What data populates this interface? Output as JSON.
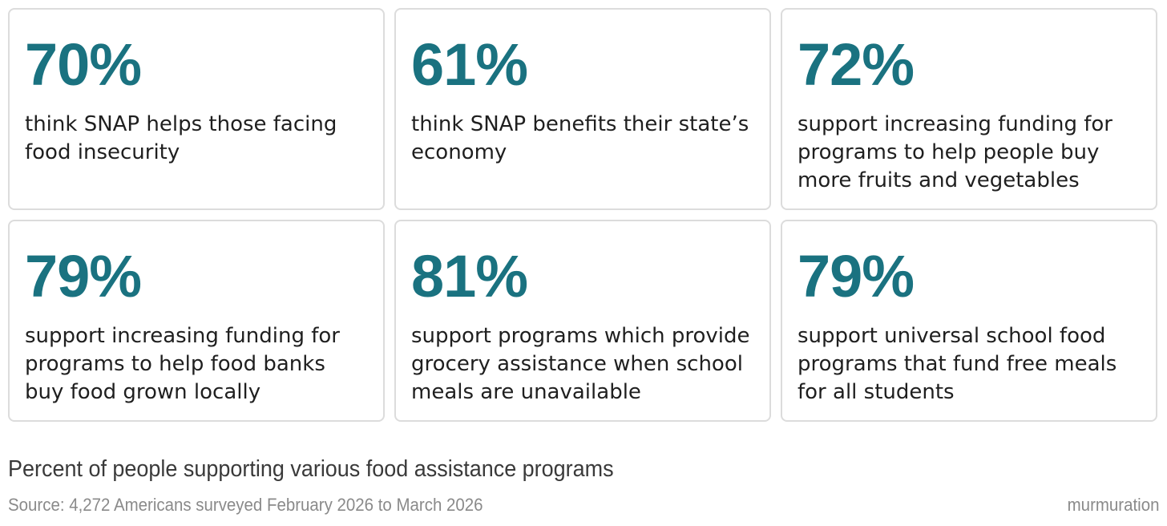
{
  "chart_data": {
    "type": "table",
    "title": "Percent of people supporting various food assistance programs",
    "source": "Source: 4,272 Americans surveyed February 2026 to March 2026",
    "brand": "murmuration",
    "accent_color": "#1a7280",
    "stats": [
      {
        "value": "70%",
        "description": "think SNAP helps those facing food insecurity"
      },
      {
        "value": "61%",
        "description": "think SNAP benefits their state’s economy"
      },
      {
        "value": "72%",
        "description": "support increasing funding for programs to help people buy more fruits and vegetables"
      },
      {
        "value": "79%",
        "description": "support increasing funding for programs to help food banks buy food grown locally"
      },
      {
        "value": "81%",
        "description": "support programs which provide grocery assistance when school meals are unavailable"
      },
      {
        "value": "79%",
        "description": "support universal school food programs that fund free meals for all students"
      }
    ]
  }
}
